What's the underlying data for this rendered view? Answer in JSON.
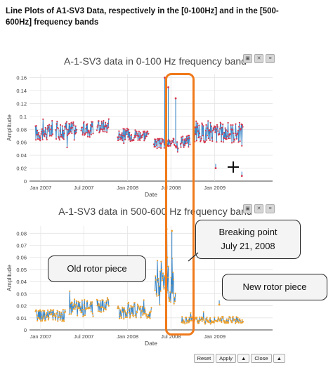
{
  "heading": "Line Plots of A1-SV3 Data, respectively in the [0-100Hz] and in the [500-600Hz] frequency bands",
  "chart_data": [
    {
      "type": "line",
      "title": "A-1-SV3 data in 0-100 Hz frequency band",
      "xlabel": "Date",
      "ylabel": "Amplitude",
      "x_range": [
        "2006-11-15",
        "2009-09-01"
      ],
      "x_ticks": [
        "2007-01-01",
        "2007-07-01",
        "2008-01-01",
        "2008-07-01",
        "2009-01-01"
      ],
      "x_tick_labels": [
        "Jan 2007",
        "Jul 2007",
        "Jan 2008",
        "Jul 2008",
        "Jan 2009"
      ],
      "ylim": [
        0,
        0.165
      ],
      "y_ticks": [
        0,
        0.02,
        0.04,
        0.06,
        0.08,
        0.1,
        0.12,
        0.14,
        0.16
      ],
      "y_tick_labels": [
        "0",
        "0.02",
        "0.04",
        "0.06",
        "0.08",
        "0.1",
        "0.12",
        "0.14",
        "0.16"
      ],
      "line_color": "#3b86c6",
      "marker_color": "#d9364d",
      "segments": [
        {
          "start": "2006-12-10",
          "end": "2007-02-20",
          "base": 0.075,
          "spread": 0.013
        },
        {
          "start": "2007-03-05",
          "end": "2007-06-01",
          "base": 0.078,
          "spread": 0.015
        },
        {
          "start": "2007-06-20",
          "end": "2007-08-10",
          "base": 0.08,
          "spread": 0.012
        },
        {
          "start": "2007-08-25",
          "end": "2007-10-15",
          "base": 0.085,
          "spread": 0.01
        },
        {
          "start": "2007-11-20",
          "end": "2008-03-30",
          "base": 0.072,
          "spread": 0.01
        },
        {
          "start": "2008-04-20",
          "end": "2008-08-01",
          "base": 0.058,
          "spread": 0.008
        },
        {
          "start": "2008-08-10",
          "end": "2008-09-20",
          "base": 0.062,
          "spread": 0.01
        },
        {
          "start": "2008-10-05",
          "end": "2009-04-30",
          "base": 0.075,
          "spread": 0.016
        }
      ],
      "spikes": [
        {
          "date": "2008-06-05",
          "value": 0.16
        },
        {
          "date": "2008-06-20",
          "value": 0.145
        },
        {
          "date": "2008-07-21",
          "value": 0.128
        },
        {
          "date": "2009-01-05",
          "value": 0.02
        },
        {
          "date": "2009-04-25",
          "value": 0.008
        }
      ]
    },
    {
      "type": "line",
      "title": "A-1-SV3 data in 500-600 Hz frequency band",
      "xlabel": "Date",
      "ylabel": "Amplitude",
      "x_range": [
        "2006-11-15",
        "2009-09-01"
      ],
      "x_ticks": [
        "2007-01-01",
        "2007-07-01",
        "2008-01-01",
        "2008-07-01",
        "2009-01-01"
      ],
      "x_tick_labels": [
        "Jan 2007",
        "Jul 2007",
        "Jan 2008",
        "Jul 2008",
        "Jan 2009"
      ],
      "ylim": [
        0,
        0.086
      ],
      "y_ticks": [
        0,
        0.01,
        0.02,
        0.03,
        0.04,
        0.05,
        0.06,
        0.07,
        0.08
      ],
      "y_tick_labels": [
        "0",
        "0.01",
        "0.02",
        "0.03",
        "0.04",
        "0.05",
        "0.06",
        "0.07",
        "0.08"
      ],
      "line_color": "#3b86c6",
      "marker_color": "#f0a32e",
      "segments": [
        {
          "start": "2006-12-10",
          "end": "2007-04-15",
          "base": 0.012,
          "spread": 0.005
        },
        {
          "start": "2007-05-01",
          "end": "2007-08-10",
          "base": 0.018,
          "spread": 0.007
        },
        {
          "start": "2007-08-25",
          "end": "2007-10-15",
          "base": 0.02,
          "spread": 0.007
        },
        {
          "start": "2007-11-20",
          "end": "2008-04-10",
          "base": 0.016,
          "spread": 0.007
        },
        {
          "start": "2008-04-25",
          "end": "2008-07-21",
          "base": 0.04,
          "spread": 0.02
        },
        {
          "start": "2008-08-15",
          "end": "2009-04-30",
          "base": 0.008,
          "spread": 0.003
        }
      ],
      "spikes": [
        {
          "date": "2008-07-05",
          "value": 0.082
        },
        {
          "date": "2008-06-15",
          "value": 0.06
        },
        {
          "date": "2009-01-20",
          "value": 0.021
        }
      ]
    }
  ],
  "annotations": {
    "breaking_point": "Breaking point\nJuly 21, 2008",
    "old_rotor": "Old rotor piece",
    "new_rotor": "New rotor piece"
  },
  "controls": {
    "reset": "Reset",
    "apply": "Apply",
    "up": "▲",
    "close": "Close",
    "up2": "▲"
  },
  "modebar_icons": [
    "camera-icon",
    "zoom-icon",
    "menu-icon"
  ]
}
